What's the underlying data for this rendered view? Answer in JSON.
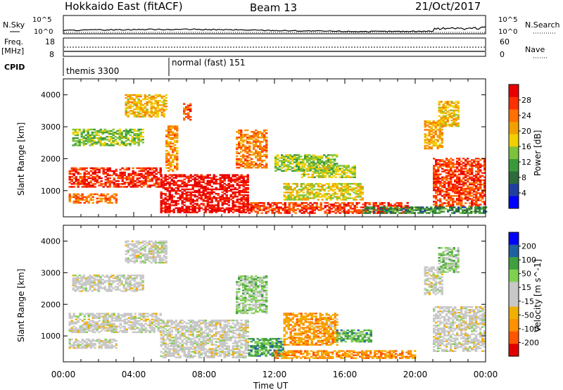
{
  "header": {
    "radar": "Hokkaido East (fitACF)",
    "beam": "Beam 13",
    "date": "21/Oct/2017"
  },
  "panels": {
    "nsky_label": "N.Sky",
    "nsearch_label": "N.Search",
    "noise_ticks": [
      "10^5",
      "10^0"
    ],
    "freq_label_1": "Freq.",
    "freq_label_2": "[MHz]",
    "freq_ticks": [
      "18",
      "8"
    ],
    "nave_label": "Nave",
    "nave_ticks": [
      "60",
      "0"
    ],
    "cpid_label": "CPID",
    "cpid_1": "themis 3300",
    "cpid_2": "normal (fast) 151"
  },
  "colors": {
    "power": [
      "#0000ff",
      "#2040a0",
      "#2e6b3a",
      "#3a9a3a",
      "#7cc23c",
      "#f0d000",
      "#f0a000",
      "#ff7000",
      "#ff3000",
      "#e80000"
    ],
    "velocity": [
      "#e00000",
      "#ff5500",
      "#ff9000",
      "#f0b000",
      "#c8c8c8",
      "#c8c8c8",
      "#80d050",
      "#40a040",
      "#2060a0",
      "#0000ff"
    ]
  },
  "chart_data": {
    "type": "heatmap",
    "x_ticks": [
      "00:00",
      "04:00",
      "08:00",
      "12:00",
      "16:00",
      "20:00",
      "00:00"
    ],
    "x_range_hours": [
      0,
      24
    ],
    "xlabel": "Time UT",
    "panels": [
      {
        "name": "power",
        "ylabel": "Slant Range [km]",
        "y_ticks": [
          "1000",
          "2000",
          "3000",
          "4000"
        ],
        "y_range": [
          180,
          4500
        ],
        "colorbar_label": "Power [dB]",
        "colorbar_ticks": [
          "4",
          "8",
          "12",
          "16",
          "20",
          "24",
          "28"
        ],
        "scale_range": [
          0,
          30
        ],
        "features": [
          {
            "t0": 0.3,
            "t1": 5.5,
            "r0": 1100,
            "r1": 1700,
            "level": 0.88
          },
          {
            "t0": 0.3,
            "t1": 3.0,
            "r0": 600,
            "r1": 900,
            "level": 0.75
          },
          {
            "t0": 0.5,
            "t1": 4.5,
            "r0": 2400,
            "r1": 2900,
            "level": 0.45
          },
          {
            "t0": 3.5,
            "t1": 5.8,
            "r0": 3300,
            "r1": 4000,
            "level": 0.6
          },
          {
            "t0": 5.5,
            "t1": 10.5,
            "r0": 300,
            "r1": 1500,
            "level": 0.95
          },
          {
            "t0": 5.8,
            "t1": 6.5,
            "r0": 1600,
            "r1": 3000,
            "level": 0.7
          },
          {
            "t0": 6.8,
            "t1": 7.2,
            "r0": 3200,
            "r1": 3700,
            "level": 0.8
          },
          {
            "t0": 9.8,
            "t1": 11.5,
            "r0": 1700,
            "r1": 2900,
            "level": 0.72
          },
          {
            "t0": 10.5,
            "t1": 19.5,
            "r0": 280,
            "r1": 600,
            "level": 0.85
          },
          {
            "t0": 12.0,
            "t1": 15.5,
            "r0": 1600,
            "r1": 2100,
            "level": 0.45
          },
          {
            "t0": 12.5,
            "t1": 17.0,
            "r0": 700,
            "r1": 1200,
            "level": 0.55
          },
          {
            "t0": 13.5,
            "t1": 16.5,
            "r0": 1400,
            "r1": 1800,
            "level": 0.5
          },
          {
            "t0": 20.5,
            "t1": 21.5,
            "r0": 2300,
            "r1": 3200,
            "level": 0.65
          },
          {
            "t0": 21.0,
            "t1": 24.0,
            "r0": 500,
            "r1": 2000,
            "level": 0.85
          },
          {
            "t0": 21.3,
            "t1": 22.5,
            "r0": 3000,
            "r1": 3800,
            "level": 0.6
          },
          {
            "t0": 17.0,
            "t1": 24.0,
            "r0": 280,
            "r1": 500,
            "level": 0.3
          }
        ]
      },
      {
        "name": "velocity",
        "ylabel": "Slant Range [km]",
        "y_ticks": [
          "1000",
          "2000",
          "3000",
          "4000"
        ],
        "y_range": [
          180,
          4500
        ],
        "colorbar_label": "Velocity [m s^-1]",
        "colorbar_ticks": [
          "200",
          "100",
          "50",
          "15",
          "-15",
          "-50",
          "-100",
          "-200"
        ],
        "scale_range": [
          -250,
          250
        ],
        "features": [
          {
            "t0": 0.3,
            "t1": 5.5,
            "r0": 1100,
            "r1": 1700,
            "level": 0.5
          },
          {
            "t0": 0.3,
            "t1": 3.0,
            "r0": 600,
            "r1": 900,
            "level": 0.5
          },
          {
            "t0": 0.5,
            "t1": 4.5,
            "r0": 2400,
            "r1": 2900,
            "level": 0.5
          },
          {
            "t0": 3.5,
            "t1": 5.8,
            "r0": 3300,
            "r1": 4000,
            "level": 0.5
          },
          {
            "t0": 5.5,
            "t1": 10.5,
            "r0": 300,
            "r1": 1500,
            "level": 0.5
          },
          {
            "t0": 9.8,
            "t1": 11.5,
            "r0": 1700,
            "r1": 2900,
            "level": 0.62
          },
          {
            "t0": 10.5,
            "t1": 12.5,
            "r0": 350,
            "r1": 900,
            "level": 0.72
          },
          {
            "t0": 12.5,
            "t1": 15.5,
            "r0": 700,
            "r1": 1700,
            "level": 0.28
          },
          {
            "t0": 15.5,
            "t1": 17.5,
            "r0": 800,
            "r1": 1200,
            "level": 0.7
          },
          {
            "t0": 12.0,
            "t1": 20.0,
            "r0": 280,
            "r1": 550,
            "level": 0.26
          },
          {
            "t0": 20.5,
            "t1": 21.5,
            "r0": 2300,
            "r1": 3200,
            "level": 0.5
          },
          {
            "t0": 21.0,
            "t1": 24.0,
            "r0": 500,
            "r1": 1900,
            "level": 0.5
          },
          {
            "t0": 21.3,
            "t1": 22.5,
            "r0": 3000,
            "r1": 3800,
            "level": 0.62
          }
        ]
      }
    ]
  }
}
